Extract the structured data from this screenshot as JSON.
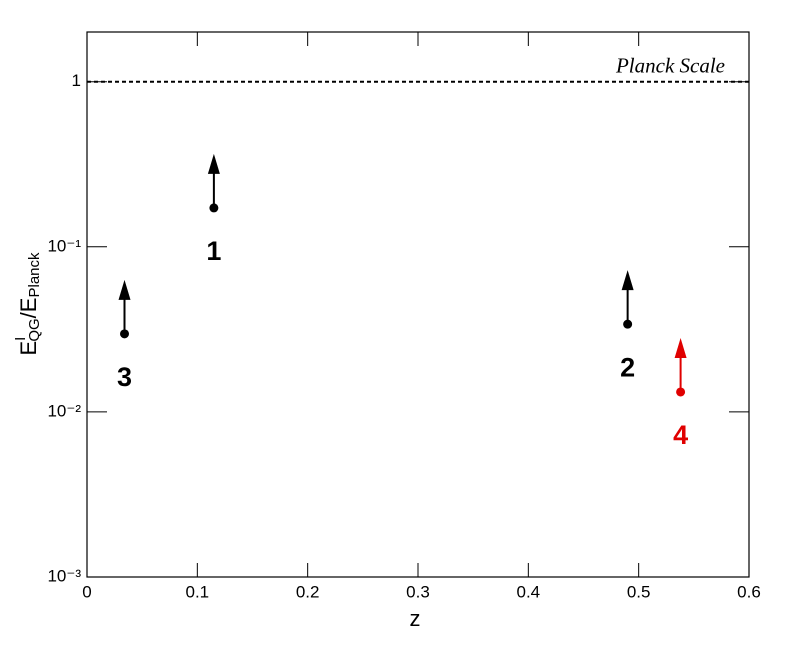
{
  "chart_data": {
    "type": "limit-scatter",
    "xlabel": "z",
    "ylabel": [
      "E",
      "I",
      "QG",
      "/E",
      "Planck"
    ],
    "xlim": [
      0,
      0.6
    ],
    "xticks": [
      0,
      0.1,
      0.2,
      0.3,
      0.4,
      0.5,
      0.6
    ],
    "ylim": [
      0.001,
      2
    ],
    "log_y": true,
    "yticks": [
      {
        "value": 0.001,
        "label": "10⁻³"
      },
      {
        "value": 0.01,
        "label": "10⁻²"
      },
      {
        "value": 0.1,
        "label": "10⁻¹"
      },
      1
    ],
    "reference_lines": [
      {
        "value": 1,
        "label": "Planck Scale"
      }
    ],
    "series": [
      {
        "name": "1",
        "color": "#000000",
        "x": [
          0.115
        ],
        "values": [
          0.172
        ]
      },
      {
        "name": "2",
        "color": "#000000",
        "x": [
          0.49
        ],
        "values": [
          0.034
        ]
      },
      {
        "name": "3",
        "color": "#000000",
        "x": [
          0.034
        ],
        "values": [
          0.0297
        ]
      },
      {
        "name": "4",
        "color": "#e00000",
        "x": [
          0.538
        ],
        "values": [
          0.0132
        ]
      }
    ]
  }
}
